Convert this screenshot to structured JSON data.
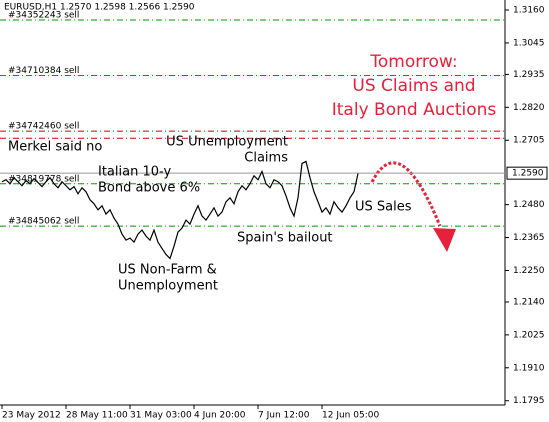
{
  "chart_data": {
    "type": "line",
    "header": "EURUSD,H1  1.2570 1.2598 1.2566 1.2590",
    "categories": [
      "23 May 2012",
      null,
      null,
      null,
      null,
      null,
      null,
      null,
      null,
      null,
      null,
      null,
      null,
      null,
      null,
      null,
      "28 May 11:00",
      null,
      null,
      null,
      null,
      null,
      null,
      null,
      null,
      null,
      null,
      null,
      null,
      null,
      null,
      null,
      "31 May 03:00",
      null,
      null,
      null,
      null,
      null,
      null,
      null,
      null,
      null,
      null,
      null,
      null,
      null,
      null,
      null,
      "4 Jun 20:00",
      null,
      null,
      null,
      null,
      null,
      null,
      null,
      null,
      null,
      null,
      null,
      null,
      null,
      null,
      null,
      "7 Jun 12:00",
      null,
      null,
      null,
      null,
      null,
      null,
      null,
      null,
      null,
      null,
      null,
      null,
      null,
      null,
      null,
      "12 Jun 05:00",
      null,
      null,
      null,
      null,
      null,
      null,
      null,
      null,
      null
    ],
    "series": [
      {
        "color": "#000000",
        "values": [
          1.256,
          1.2567,
          1.2553,
          1.2574,
          1.256,
          1.2546,
          1.2564,
          1.2553,
          1.2571,
          1.2557,
          1.2543,
          1.256,
          1.2574,
          1.2553,
          1.2539,
          1.256,
          1.2546,
          1.2532,
          1.2543,
          1.2518,
          1.2539,
          1.2525,
          1.2497,
          1.2483,
          1.2462,
          1.2476,
          1.2447,
          1.2462,
          1.2433,
          1.2412,
          1.2377,
          1.2356,
          1.2363,
          1.2349,
          1.2377,
          1.2391,
          1.237,
          1.2356,
          1.2391,
          1.2349,
          1.2327,
          1.2306,
          1.2292,
          1.2335,
          1.2384,
          1.2398,
          1.2426,
          1.2412,
          1.2447,
          1.2476,
          1.244,
          1.2426,
          1.2447,
          1.2469,
          1.244,
          1.2454,
          1.249,
          1.2504,
          1.2483,
          1.2525,
          1.2546,
          1.2532,
          1.2553,
          1.2581,
          1.2567,
          1.2596,
          1.2553,
          1.2539,
          1.2567,
          1.256,
          1.2546,
          1.2511,
          1.2469,
          1.244,
          1.2504,
          1.2624,
          1.2631,
          1.2574,
          1.2525,
          1.249,
          1.2454,
          1.2469,
          1.2447,
          1.249,
          1.2469,
          1.2454,
          1.2476,
          1.2504,
          1.2525,
          1.2589
        ]
      }
    ],
    "ylim": [
      1.178,
      1.3195
    ],
    "yticks": [
      {
        "value": 1.316,
        "label": "1.3160"
      },
      {
        "value": 1.3045,
        "label": "1.3045"
      },
      {
        "value": 1.2935,
        "label": "1.2935"
      },
      {
        "value": 1.282,
        "label": "1.2820"
      },
      {
        "value": 1.2705,
        "label": "1.2705"
      },
      {
        "value": 1.248,
        "label": "1.2480"
      },
      {
        "value": 1.2365,
        "label": "1.2365"
      },
      {
        "value": 1.225,
        "label": "1.2250"
      },
      {
        "value": 1.214,
        "label": "1.2140"
      },
      {
        "value": 1.2025,
        "label": "1.2025"
      },
      {
        "value": 1.191,
        "label": "1.1910"
      },
      {
        "value": 1.1795,
        "label": "1.1795"
      }
    ],
    "last_price": {
      "value": 1.259,
      "label": "1.2590"
    },
    "orders": [
      {
        "label": "#34352243 sell",
        "price": 1.3125,
        "color": "#009900"
      },
      {
        "label": "#34710384 sell",
        "price": 1.2931,
        "color": "#009900"
      },
      {
        "label": "#34742460 sell",
        "price": 1.2737,
        "color": "#cc0000"
      },
      {
        "price": 1.2712,
        "color": "#cc0000"
      },
      {
        "label": "#34819778 sell",
        "price": 1.2553,
        "color": "#009900"
      },
      {
        "label": "#34845062 sell",
        "price": 1.2405,
        "color": "#009900"
      }
    ],
    "annotations": [
      {
        "lines": [
          "Merkel said no"
        ]
      },
      {
        "lines": [
          "Italian 10-y",
          "Bond above 6%"
        ]
      },
      {
        "lines": [
          "US Unemployment",
          "Claims"
        ]
      },
      {
        "lines": [
          "Spain's bailout"
        ]
      },
      {
        "lines": [
          "US Sales"
        ]
      },
      {
        "lines": [
          "US Non-Farm &",
          "Unemployment"
        ]
      },
      {
        "lines": [
          "Tomorrow:",
          "US Claims and",
          "Italy Bond Auctions"
        ],
        "color": "#e8203a"
      }
    ]
  }
}
